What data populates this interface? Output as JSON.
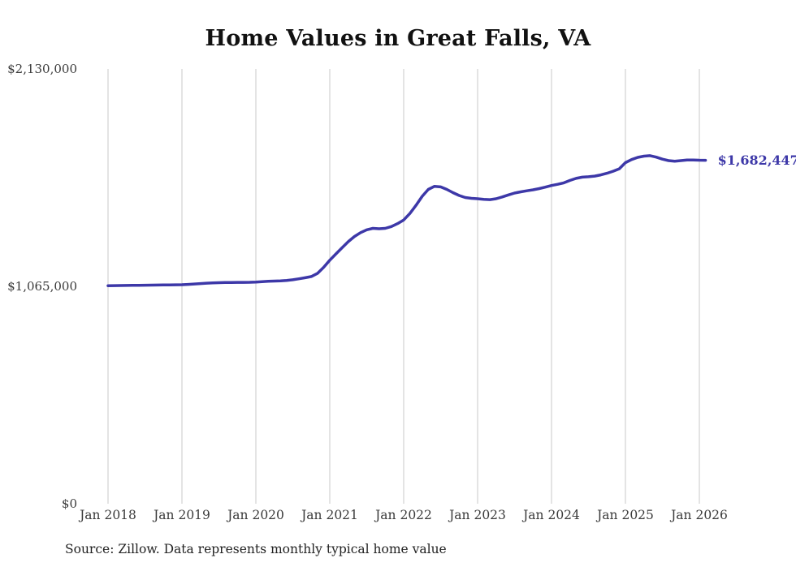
{
  "title": "Home Values in Great Falls, VA",
  "source_note": "Source: Zillow. Data represents monthly typical home value",
  "end_label": "$1,682,447",
  "colors": {
    "line": "#3d38a8",
    "grid": "#c9c9c9",
    "title": "#111111",
    "axis_text": "#3a3a3a"
  },
  "chart_data": {
    "type": "line",
    "title": "Home Values in Great Falls, VA",
    "xlabel": "",
    "ylabel": "",
    "ylim": [
      0,
      2130000
    ],
    "y_ticks": [
      {
        "value": 0,
        "label": "$0"
      },
      {
        "value": 1065000,
        "label": "$1,065,000"
      },
      {
        "value": 2130000,
        "label": "$2,130,000"
      }
    ],
    "x_tick_labels": [
      "Jan 2018",
      "Jan 2019",
      "Jan 2020",
      "Jan 2021",
      "Jan 2022",
      "Jan 2023",
      "Jan 2024",
      "Jan 2025",
      "Jan 2026"
    ],
    "grid": "vertical",
    "legend": "none",
    "end_value": 1682447,
    "series": [
      {
        "name": "Monthly typical home value",
        "x_start": "Jan 2018",
        "interval": "monthly",
        "values": [
          1068000,
          1068500,
          1069000,
          1069500,
          1070000,
          1070300,
          1070600,
          1071000,
          1071300,
          1071600,
          1072000,
          1072500,
          1073000,
          1074500,
          1076500,
          1078500,
          1080500,
          1082000,
          1083000,
          1083500,
          1084000,
          1084300,
          1084600,
          1085000,
          1086000,
          1088000,
          1090000,
          1091000,
          1092000,
          1094000,
          1097000,
          1102000,
          1107000,
          1113000,
          1128000,
          1158000,
          1193000,
          1224000,
          1254000,
          1284000,
          1309000,
          1328000,
          1342000,
          1349000,
          1347000,
          1349000,
          1358000,
          1372000,
          1390000,
          1422000,
          1462000,
          1506000,
          1540000,
          1555000,
          1552000,
          1540000,
          1524000,
          1510000,
          1500000,
          1496000,
          1494000,
          1491000,
          1490000,
          1494000,
          1503000,
          1513000,
          1522000,
          1528000,
          1533000,
          1538000,
          1544000,
          1551000,
          1559000,
          1565000,
          1572000,
          1584000,
          1594000,
          1600000,
          1602000,
          1605000,
          1611000,
          1619000,
          1629000,
          1641000,
          1671000,
          1686000,
          1697000,
          1703000,
          1705000,
          1698000,
          1688000,
          1681000,
          1678000,
          1681000,
          1684000,
          1684000,
          1683000,
          1682447
        ]
      }
    ]
  }
}
